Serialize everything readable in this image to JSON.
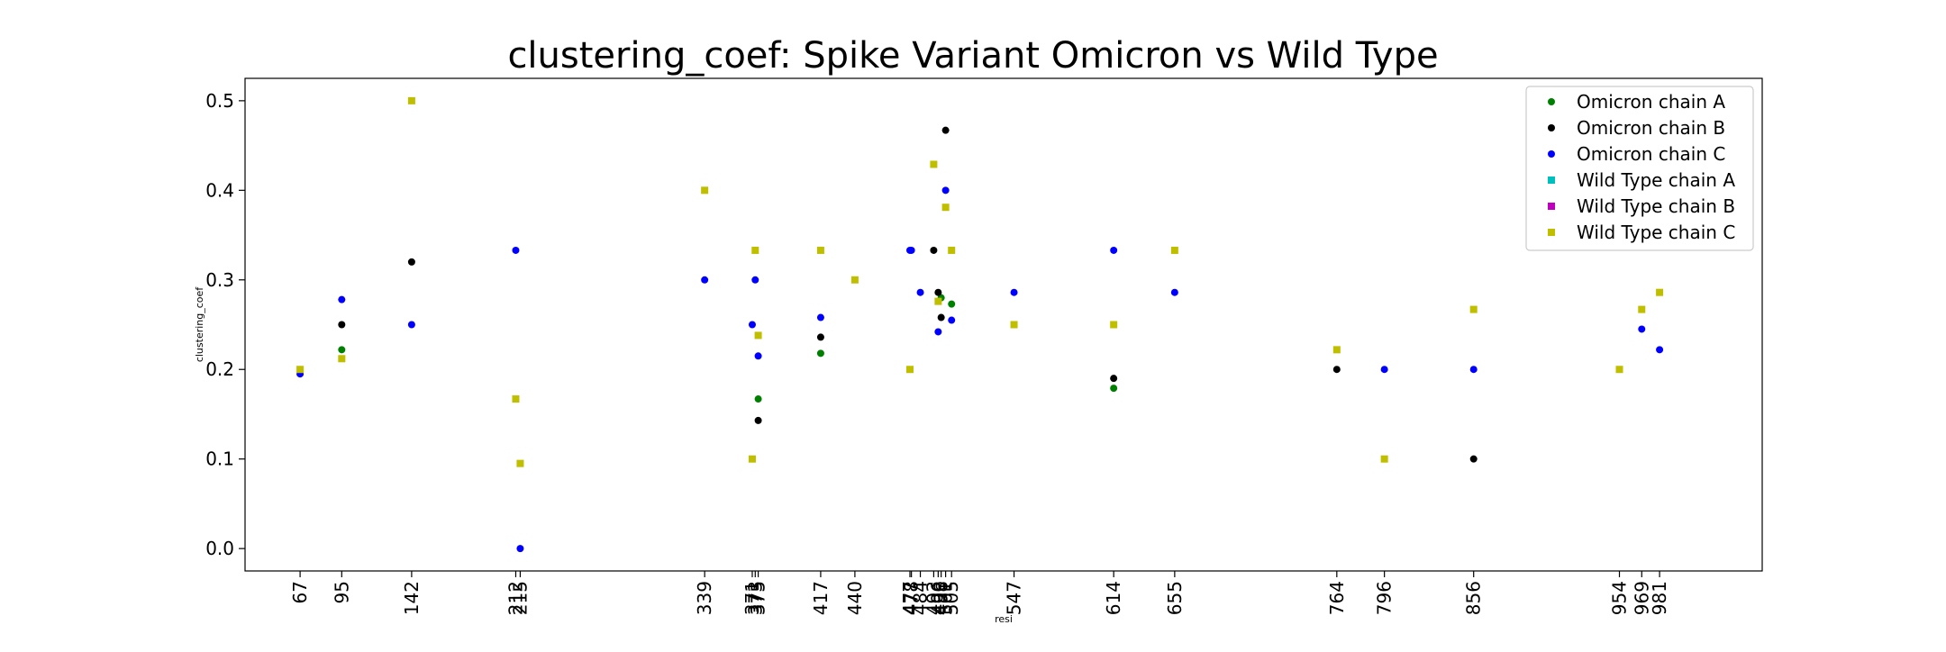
{
  "chart_data": {
    "type": "scatter",
    "title": "clustering_coef: Spike Variant Omicron vs Wild Type",
    "xlabel": "resi",
    "ylabel": "clustering_coef",
    "ylim": [
      -0.025,
      0.525
    ],
    "xlim": [
      30,
      1050
    ],
    "yticks": [
      0.0,
      0.1,
      0.2,
      0.3,
      0.4,
      0.5
    ],
    "ytick_labels": [
      "0.0",
      "0.1",
      "0.2",
      "0.3",
      "0.4",
      "0.5"
    ],
    "xticks": [
      67,
      95,
      142,
      212,
      215,
      339,
      371,
      373,
      375,
      417,
      440,
      477,
      478,
      484,
      493,
      496,
      498,
      501,
      505,
      547,
      614,
      655,
      764,
      796,
      856,
      954,
      969,
      981
    ],
    "xtick_labels": [
      "67",
      "95",
      "142",
      "212",
      "215",
      "339",
      "371",
      "373",
      "375",
      "417",
      "440",
      "477",
      "478",
      "484",
      "493",
      "496",
      "498",
      "501",
      "505",
      "547",
      "614",
      "655",
      "764",
      "796",
      "856",
      "954",
      "969",
      "981"
    ],
    "grid": false,
    "legend_position": "top-right",
    "series": [
      {
        "name": "Omicron chain A",
        "color": "#008000",
        "marker": "circle",
        "points": [
          [
            95,
            0.222
          ],
          [
            375,
            0.167
          ],
          [
            417,
            0.218
          ],
          [
            498,
            0.28
          ],
          [
            505,
            0.273
          ],
          [
            614,
            0.179
          ]
        ]
      },
      {
        "name": "Omicron chain B",
        "color": "#000000",
        "marker": "circle",
        "points": [
          [
            95,
            0.25
          ],
          [
            142,
            0.32
          ],
          [
            375,
            0.143
          ],
          [
            417,
            0.236
          ],
          [
            493,
            0.333
          ],
          [
            496,
            0.286
          ],
          [
            498,
            0.258
          ],
          [
            501,
            0.467
          ],
          [
            614,
            0.19
          ],
          [
            764,
            0.2
          ],
          [
            856,
            0.1
          ]
        ]
      },
      {
        "name": "Omicron chain C",
        "color": "#0000ff",
        "marker": "circle",
        "points": [
          [
            67,
            0.195
          ],
          [
            95,
            0.278
          ],
          [
            142,
            0.25
          ],
          [
            212,
            0.333
          ],
          [
            215,
            0.0
          ],
          [
            339,
            0.3
          ],
          [
            371,
            0.25
          ],
          [
            373,
            0.3
          ],
          [
            375,
            0.215
          ],
          [
            417,
            0.258
          ],
          [
            477,
            0.333
          ],
          [
            478,
            0.333
          ],
          [
            484,
            0.286
          ],
          [
            496,
            0.242
          ],
          [
            501,
            0.4
          ],
          [
            505,
            0.255
          ],
          [
            547,
            0.286
          ],
          [
            614,
            0.333
          ],
          [
            655,
            0.286
          ],
          [
            796,
            0.2
          ],
          [
            856,
            0.2
          ],
          [
            969,
            0.245
          ],
          [
            981,
            0.222
          ]
        ]
      },
      {
        "name": "Wild Type chain A",
        "color": "#00bfbf",
        "marker": "square",
        "points": []
      },
      {
        "name": "Wild Type chain B",
        "color": "#bf00bf",
        "marker": "square",
        "points": []
      },
      {
        "name": "Wild Type chain C",
        "color": "#bfbf00",
        "marker": "square",
        "points": [
          [
            67,
            0.2
          ],
          [
            95,
            0.212
          ],
          [
            142,
            0.5
          ],
          [
            212,
            0.167
          ],
          [
            215,
            0.095
          ],
          [
            339,
            0.4
          ],
          [
            371,
            0.1
          ],
          [
            373,
            0.333
          ],
          [
            375,
            0.238
          ],
          [
            417,
            0.333
          ],
          [
            440,
            0.3
          ],
          [
            477,
            0.2
          ],
          [
            493,
            0.429
          ],
          [
            496,
            0.276
          ],
          [
            501,
            0.381
          ],
          [
            505,
            0.333
          ],
          [
            547,
            0.25
          ],
          [
            614,
            0.25
          ],
          [
            655,
            0.333
          ],
          [
            764,
            0.222
          ],
          [
            796,
            0.1
          ],
          [
            856,
            0.267
          ],
          [
            954,
            0.2
          ],
          [
            969,
            0.267
          ],
          [
            981,
            0.286
          ]
        ]
      }
    ]
  }
}
